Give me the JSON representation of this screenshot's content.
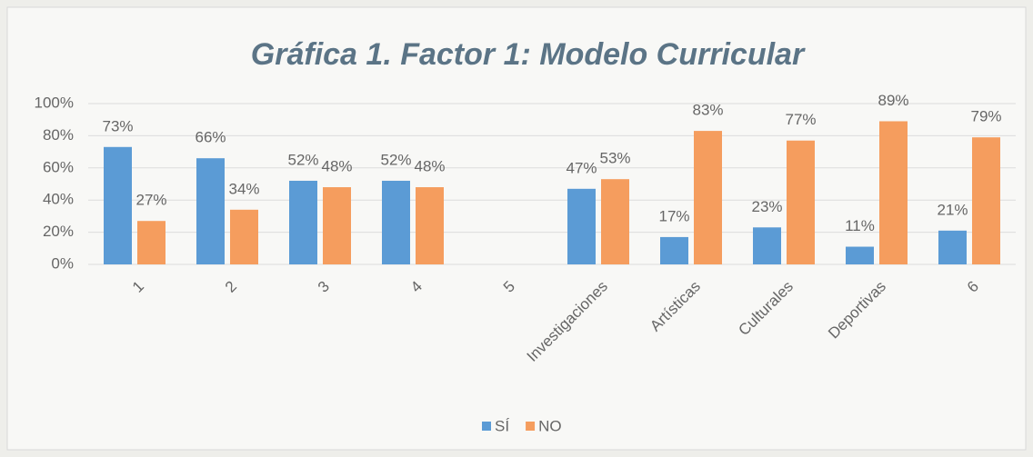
{
  "chart_data": {
    "type": "bar",
    "title": "Gráfica 1. Factor 1: Modelo Curricular",
    "categories": [
      "1",
      "2",
      "3",
      "4",
      "5",
      "Investigaciones",
      "Artísticas",
      "Culturales",
      "Deportivas",
      "6"
    ],
    "series": [
      {
        "name": "SÍ",
        "color": "#5b9bd5",
        "values": [
          73,
          66,
          52,
          52,
          null,
          47,
          17,
          23,
          11,
          21
        ],
        "value_labels": [
          "73%",
          "66%",
          "52%",
          "52%",
          null,
          "47%",
          "17%",
          "23%",
          "11%",
          "21%"
        ]
      },
      {
        "name": "NO",
        "color": "#f59d5e",
        "values": [
          27,
          34,
          48,
          48,
          null,
          53,
          83,
          77,
          89,
          79
        ],
        "value_labels": [
          "27%",
          "34%",
          "48%",
          "48%",
          null,
          "53%",
          "83%",
          "77%",
          "89%",
          "79%"
        ]
      }
    ],
    "ylim": [
      0,
      100
    ],
    "yticks": [
      {
        "value": 0,
        "label": "0%"
      },
      {
        "value": 20,
        "label": "20%"
      },
      {
        "value": 40,
        "label": "40%"
      },
      {
        "value": 60,
        "label": "60%"
      },
      {
        "value": 80,
        "label": "80%"
      },
      {
        "value": 100,
        "label": "100%"
      }
    ],
    "grid": true,
    "legend": "bottom"
  }
}
